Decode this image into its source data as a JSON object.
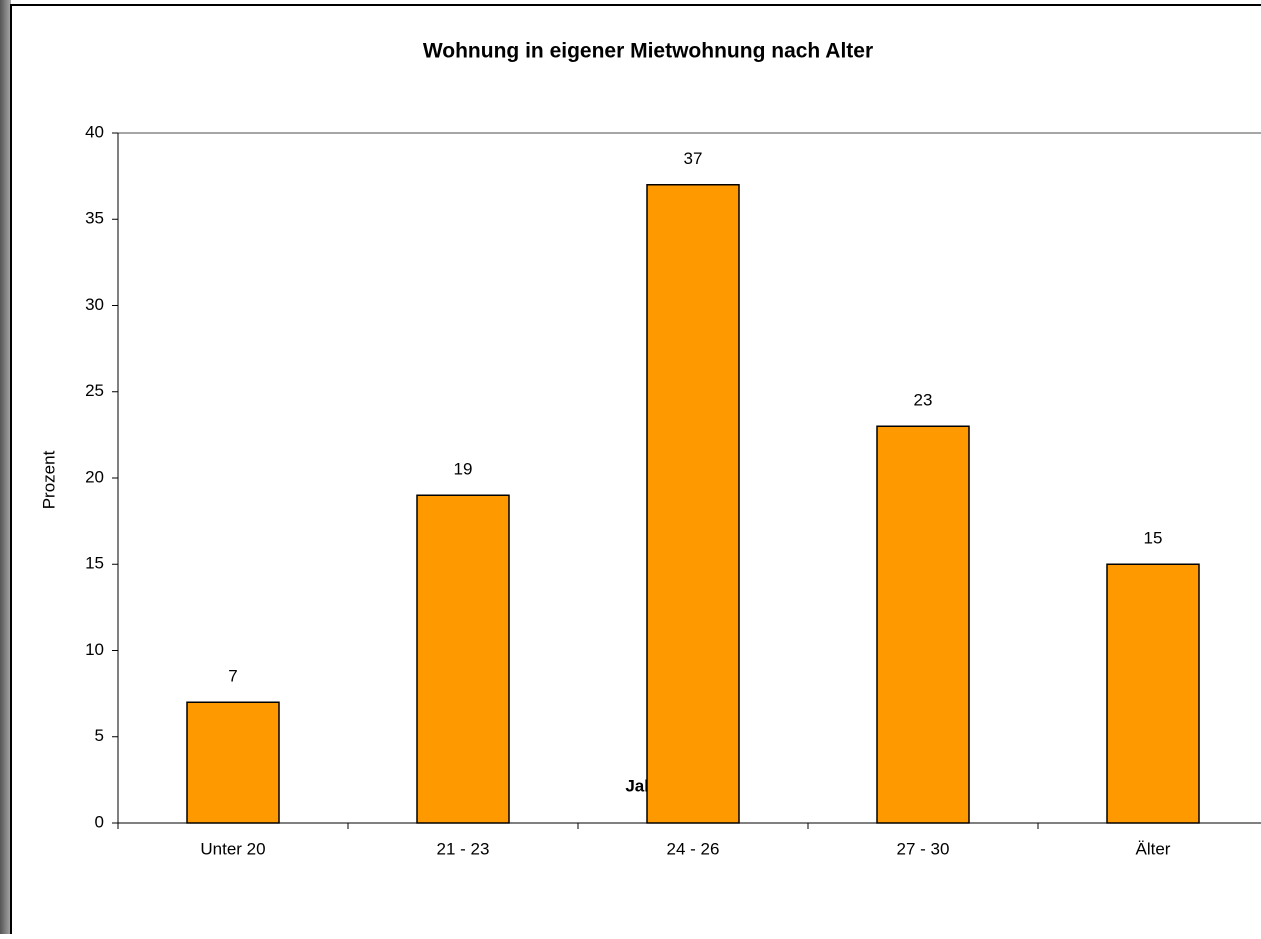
{
  "chart_data": {
    "type": "bar",
    "title": "Wohnung in eigener Mietwohnung nach Alter",
    "x_label": "Jahre",
    "y_label": "Prozent",
    "categories": [
      "Unter 20",
      "21 - 23",
      "24 - 26",
      "27 - 30",
      "Älter"
    ],
    "values": [
      7,
      19,
      37,
      23,
      15
    ],
    "color": "#ff9900",
    "ylim": [
      0,
      40
    ],
    "yticks": [
      0,
      5,
      10,
      15,
      20,
      25,
      30,
      35,
      40
    ],
    "grid": false,
    "data_labels": true
  }
}
